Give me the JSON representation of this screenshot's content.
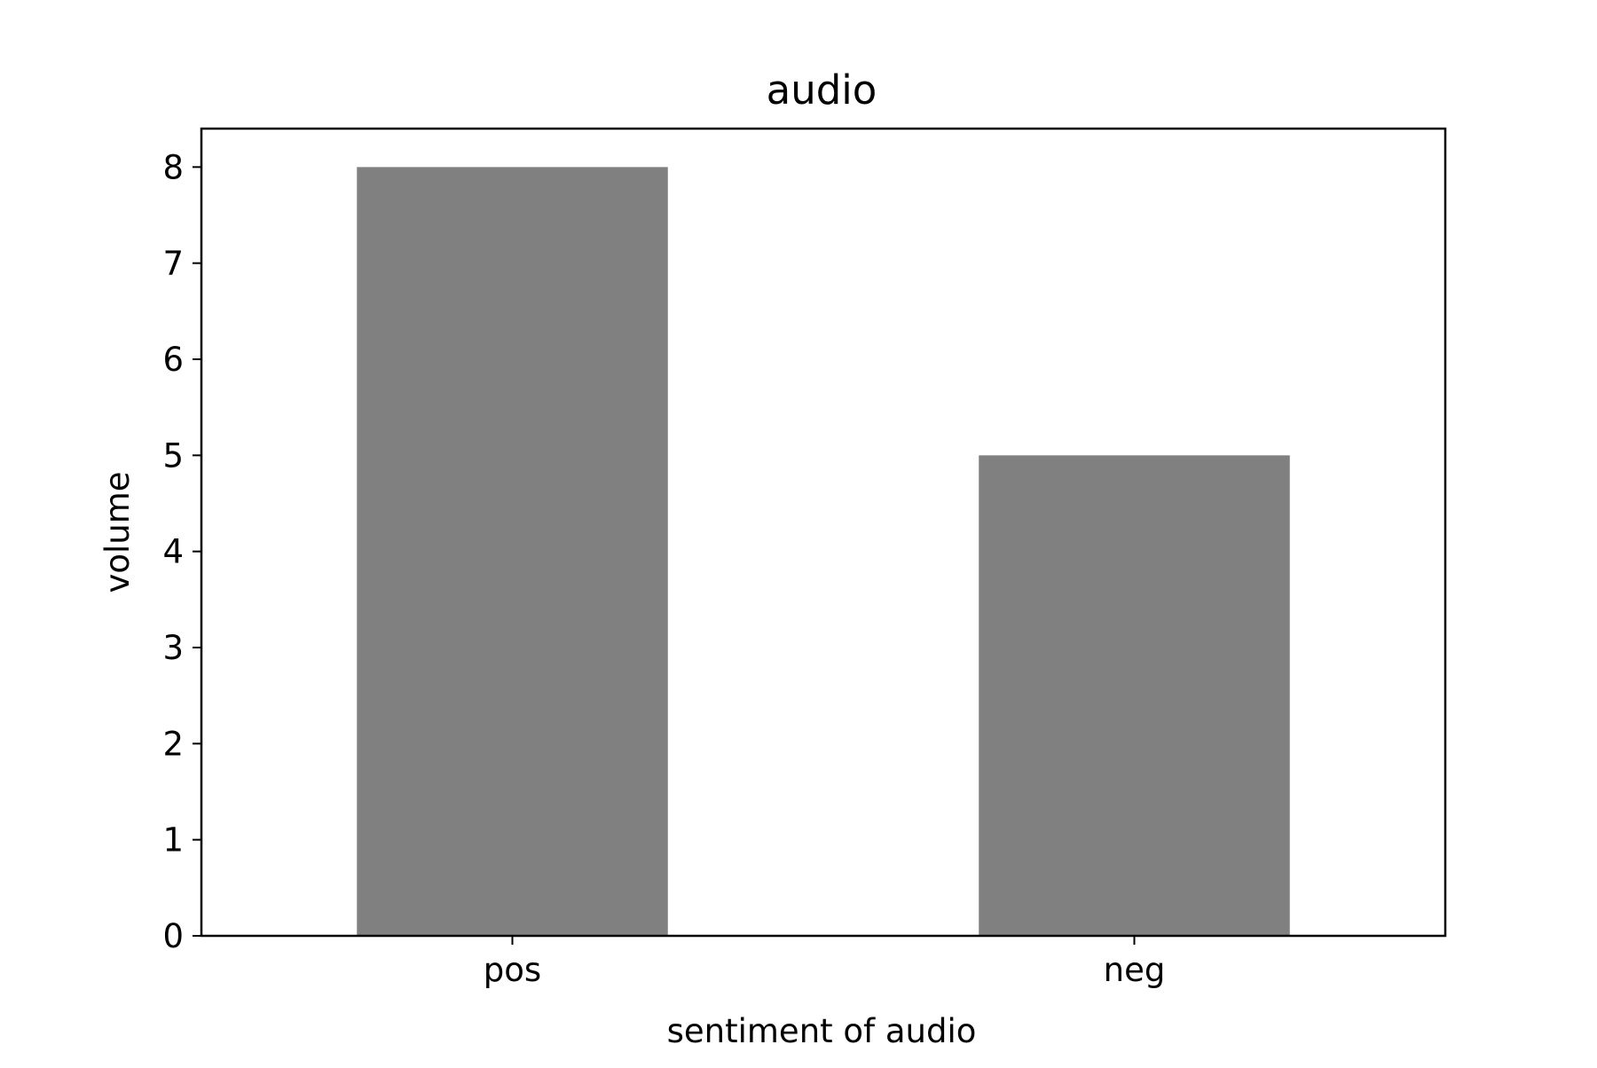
{
  "chart_data": {
    "type": "bar",
    "title": "audio",
    "xlabel": "sentiment of audio",
    "ylabel": "volume",
    "categories": [
      "pos",
      "neg"
    ],
    "values": [
      8,
      5
    ],
    "ylim": [
      0,
      8.4
    ],
    "yticks": [
      0,
      1,
      2,
      3,
      4,
      5,
      6,
      7,
      8
    ],
    "bar_color": "#808080",
    "grid": false,
    "legend": "none"
  }
}
